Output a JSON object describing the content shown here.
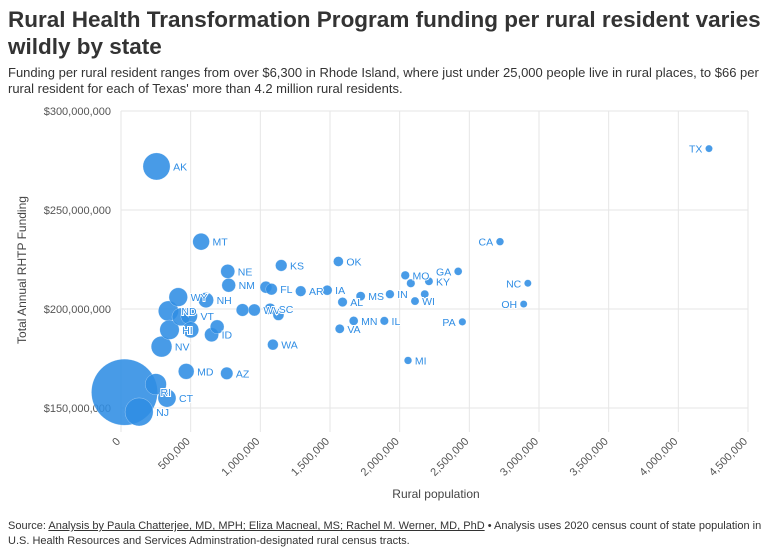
{
  "chart_data": {
    "type": "scatter",
    "title": "Rural Health Transformation Program funding per rural resident varies wildly by state",
    "subtitle": "Funding per rural resident ranges from over $6,300 in Rhode Island, where just under 25,000 people live in rural places, to $66 per rural resident for each of Texas' more than 4.2 million rural residents.",
    "xlabel": "Rural population",
    "ylabel": "Total Annual RHTP Funding",
    "xlim": [
      0,
      4500000
    ],
    "ylim": [
      140000000,
      300000000
    ],
    "xticks": [
      0,
      500000,
      1000000,
      1500000,
      2000000,
      2500000,
      3000000,
      3500000,
      4000000,
      4500000
    ],
    "xtick_labels": [
      "0",
      "500,000",
      "1,000,000",
      "1,500,000",
      "2,000,000",
      "2,500,000",
      "3,000,000",
      "3,500,000",
      "4,000,000",
      "4,500,000"
    ],
    "yticks": [
      150000000,
      200000000,
      250000000,
      300000000
    ],
    "ytick_labels": [
      "$150,000,000",
      "$200,000,000",
      "$250,000,000",
      "$300,000,000"
    ],
    "grid": true,
    "bubble_size": "funding per rural resident",
    "color": "#2f8de4",
    "points": [
      {
        "label": "RI",
        "x": 25000,
        "y": 158000000
      },
      {
        "label": "TX",
        "x": 4220000,
        "y": 281000000
      },
      {
        "label": "AK",
        "x": 255000,
        "y": 272000000
      },
      {
        "label": "MT",
        "x": 575000,
        "y": 234000000
      },
      {
        "label": "CA",
        "x": 2720000,
        "y": 234000000
      },
      {
        "label": "OK",
        "x": 1560000,
        "y": 224000000
      },
      {
        "label": "KS",
        "x": 1150000,
        "y": 222000000
      },
      {
        "label": "NE",
        "x": 766000,
        "y": 219000000
      },
      {
        "label": "GA",
        "x": 2420000,
        "y": 219000000
      },
      {
        "label": "MO",
        "x": 2040000,
        "y": 217000000
      },
      {
        "label": "KY",
        "x": 2210000,
        "y": 214000000
      },
      {
        "label": "",
        "x": 2080000,
        "y": 213000000
      },
      {
        "label": "NC",
        "x": 2920000,
        "y": 213000000
      },
      {
        "label": "NM",
        "x": 773000,
        "y": 212000000
      },
      {
        "label": "FL",
        "x": 1080000,
        "y": 210000000
      },
      {
        "label": "",
        "x": 1040000,
        "y": 211000000
      },
      {
        "label": "AR",
        "x": 1290000,
        "y": 209000000
      },
      {
        "label": "IA",
        "x": 1480000,
        "y": 209500000
      },
      {
        "label": "IN",
        "x": 1930000,
        "y": 207500000
      },
      {
        "label": "",
        "x": 2180000,
        "y": 207500000
      },
      {
        "label": "MS",
        "x": 1720000,
        "y": 206500000
      },
      {
        "label": "WY",
        "x": 411000,
        "y": 206000000
      },
      {
        "label": "NH",
        "x": 610000,
        "y": 204500000
      },
      {
        "label": "WI",
        "x": 2110000,
        "y": 204000000
      },
      {
        "label": "AL",
        "x": 1590000,
        "y": 203500000
      },
      {
        "label": "OH",
        "x": 2890000,
        "y": 202500000
      },
      {
        "label": "",
        "x": 872000,
        "y": 199500000
      },
      {
        "label": "WV",
        "x": 957000,
        "y": 199500000
      },
      {
        "label": "SC",
        "x": 1070000,
        "y": 200000000
      },
      {
        "label": "",
        "x": 1130000,
        "y": 197000000
      },
      {
        "label": "ND",
        "x": 340000,
        "y": 199000000
      },
      {
        "label": "VT",
        "x": 489000,
        "y": 196500000
      },
      {
        "label": "",
        "x": 430000,
        "y": 196000000
      },
      {
        "label": "MN",
        "x": 1670000,
        "y": 194000000
      },
      {
        "label": "IL",
        "x": 1890000,
        "y": 194000000
      },
      {
        "label": "PA",
        "x": 2450000,
        "y": 193500000
      },
      {
        "label": "",
        "x": 690000,
        "y": 191000000
      },
      {
        "label": "VA",
        "x": 1570000,
        "y": 190000000
      },
      {
        "label": "HI",
        "x": 348000,
        "y": 189500000
      },
      {
        "label": "",
        "x": 500000,
        "y": 189500000
      },
      {
        "label": "ID",
        "x": 650000,
        "y": 187000000
      },
      {
        "label": "WA",
        "x": 1090000,
        "y": 182000000
      },
      {
        "label": "NV",
        "x": 291000,
        "y": 181000000
      },
      {
        "label": "MI",
        "x": 2060000,
        "y": 174000000
      },
      {
        "label": "MD",
        "x": 468000,
        "y": 168500000
      },
      {
        "label": "AZ",
        "x": 759000,
        "y": 167500000
      },
      {
        "label": "",
        "x": 250000,
        "y": 162000000
      },
      {
        "label": "CT",
        "x": 330000,
        "y": 155000000
      },
      {
        "label": "NJ",
        "x": 130000,
        "y": 148000000
      }
    ]
  },
  "footer": {
    "prefix": "Source: ",
    "link": "Analysis by Paula Chatterjee, MD, MPH; Eliza Macneal, MS; Rachel M. Werner, MD, PhD",
    "suffix": " • Analysis uses 2020 census count of state population in U.S. Health Resources and Services Adminstration-designated rural census tracts."
  }
}
